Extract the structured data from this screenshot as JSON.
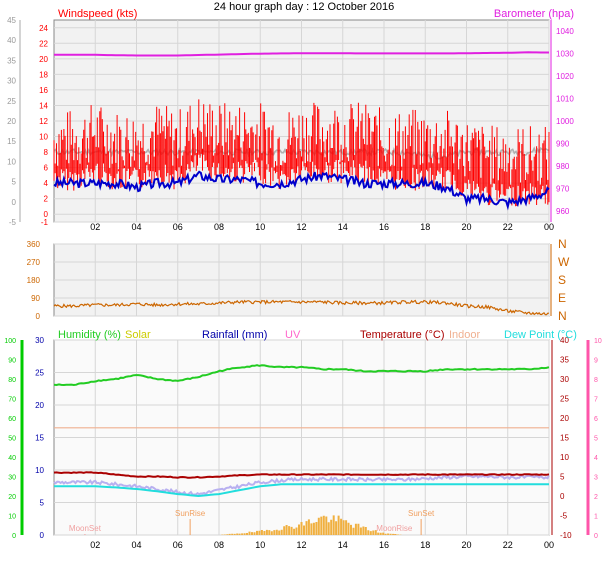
{
  "title": "24 hour graph day : 12 October 2016",
  "x_tick_labels": [
    "02",
    "04",
    "06",
    "08",
    "10",
    "12",
    "14",
    "16",
    "18",
    "20",
    "22",
    "00"
  ],
  "colors": {
    "panel_bg_top": "#f2f2f2",
    "grid": "#d6d6d6",
    "wind_avg": "#0000cc",
    "wind_gust": "#ff0000",
    "wind_gray": "#b0b0b0",
    "barometer": "#e020e0",
    "direction": "#cc6600",
    "humidity": "#22cc22",
    "solar": "#cccc00",
    "rainfall": "#0000aa",
    "uv": "#ff66cc",
    "temperature": "#aa0000",
    "indoor": "#f0b090",
    "dewpoint": "#22dddd",
    "feels": "#b8b0f0",
    "axis_green": "#00cc00",
    "axis_pink": "#ff55aa",
    "axis_orange": "#cc6600"
  },
  "chart_data": [
    {
      "type": "line",
      "panel": "wind",
      "title": "24 hour graph day : 12 October 2016",
      "left_axis_label": "Windspeed (kts)",
      "right_axis_label": "Barometer (hpa)",
      "outer_left_ticks": [
        "-5",
        "0",
        "5",
        "10",
        "15",
        "20",
        "25",
        "30",
        "35",
        "40",
        "45"
      ],
      "left_ticks": [
        "-1",
        "0",
        "2",
        "4",
        "6",
        "8",
        "10",
        "12",
        "14",
        "16",
        "18",
        "20",
        "22",
        "24"
      ],
      "right_ticks": [
        "960",
        "970",
        "980",
        "990",
        "1000",
        "1010",
        "1020",
        "1030",
        "1040"
      ],
      "ylim_left": [
        -1,
        25
      ],
      "ylim_right": [
        955,
        1045
      ],
      "x_hours": [
        1,
        2,
        3,
        4,
        5,
        6,
        7,
        8,
        9,
        10,
        11,
        12,
        13,
        14,
        15,
        16,
        17,
        18,
        19,
        20,
        21,
        22,
        23,
        24
      ],
      "series": [
        {
          "name": "Barometer",
          "axis": "right",
          "values": [
            1029.5,
            1029.5,
            1029.3,
            1029.2,
            1029.2,
            1029.2,
            1029.4,
            1029.6,
            1029.8,
            1030,
            1030.1,
            1030.2,
            1030.2,
            1030.2,
            1030.1,
            1030.1,
            1030.1,
            1030.1,
            1030.1,
            1030.2,
            1030.3,
            1030.4,
            1030.6,
            1030.5
          ]
        },
        {
          "name": "Wind Gust",
          "axis": "left",
          "values": [
            8,
            9,
            8,
            8,
            9,
            8,
            10,
            9,
            9,
            9,
            8,
            9,
            9,
            9,
            9,
            8,
            8,
            8,
            8,
            7,
            6,
            6,
            6,
            6
          ]
        },
        {
          "name": "Wind Average",
          "axis": "left",
          "values": [
            4,
            4,
            4,
            3.5,
            4,
            4,
            5,
            4.5,
            4.5,
            4,
            4,
            4.5,
            5,
            4.5,
            4,
            4,
            4,
            4,
            3.5,
            2,
            2,
            1.5,
            2,
            3
          ]
        },
        {
          "name": "Wind Trend",
          "axis": "left",
          "values": [
            8,
            8,
            8,
            8,
            8,
            8,
            8,
            8,
            8,
            8,
            8,
            8,
            8,
            8,
            8,
            8,
            8,
            7.5,
            7.5,
            8,
            8,
            8,
            8,
            8.5
          ]
        }
      ]
    },
    {
      "type": "line",
      "panel": "direction",
      "right_axis_labels": [
        "N",
        "W",
        "S",
        "E",
        "N"
      ],
      "left_ticks": [
        "0",
        "90",
        "180",
        "270",
        "360"
      ],
      "ylim": [
        0,
        360
      ],
      "x_hours": [
        1,
        2,
        3,
        4,
        5,
        6,
        7,
        8,
        9,
        10,
        11,
        12,
        13,
        14,
        15,
        16,
        17,
        18,
        19,
        20,
        21,
        22,
        23,
        24
      ],
      "series": [
        {
          "name": "Wind Direction",
          "values": [
            50,
            55,
            55,
            60,
            55,
            60,
            60,
            65,
            70,
            70,
            70,
            70,
            70,
            65,
            65,
            65,
            70,
            70,
            65,
            50,
            45,
            25,
            15,
            10
          ]
        }
      ]
    },
    {
      "type": "line",
      "panel": "climate",
      "legend": [
        "Humidity (%)",
        "Solar",
        "Rainfall (mm)",
        "UV",
        "Temperature (°C)",
        "Indoor",
        "Dew Point (°C)"
      ],
      "outer_left_ticks": [
        "0",
        "10",
        "20",
        "30",
        "40",
        "50",
        "60",
        "70",
        "80",
        "90",
        "100"
      ],
      "left_ticks": [
        "0",
        "5",
        "10",
        "15",
        "20",
        "25",
        "30"
      ],
      "right_ticks": [
        "-10",
        "-5",
        "0",
        "5",
        "10",
        "15",
        "20",
        "25",
        "30",
        "35",
        "40"
      ],
      "far_right_ticks": [
        "0",
        "1",
        "2",
        "3",
        "4",
        "5",
        "6",
        "7",
        "8",
        "9",
        "10"
      ],
      "ylim_humidity": [
        0,
        100
      ],
      "ylim_temperature": [
        -10,
        40
      ],
      "annotations": [
        "MoonSet",
        "SunRise",
        "SunSet",
        "MoonRise"
      ],
      "x_hours": [
        1,
        2,
        3,
        4,
        5,
        6,
        7,
        8,
        9,
        10,
        11,
        12,
        13,
        14,
        15,
        16,
        17,
        18,
        19,
        20,
        21,
        22,
        23,
        24
      ],
      "series": [
        {
          "name": "Humidity",
          "axis": "humidity",
          "values": [
            77,
            79,
            80,
            82,
            80,
            79,
            81,
            84,
            86,
            87,
            86,
            86,
            85,
            85,
            84,
            84,
            84,
            84,
            85,
            85,
            85,
            85,
            85,
            86
          ]
        },
        {
          "name": "Indoor",
          "axis": "temperature",
          "values": [
            17.5,
            17.5,
            17.5,
            17.5,
            17.5,
            17.5,
            17.5,
            17.5,
            17.5,
            17.5,
            17.5,
            17.5,
            17.5,
            17.5,
            17.5,
            17.5,
            17.5,
            17.5,
            17.5,
            17.5,
            17.5,
            17.5,
            17.5,
            17.5
          ]
        },
        {
          "name": "Temperature",
          "axis": "temperature",
          "values": [
            6,
            6,
            5.5,
            5,
            5,
            4.8,
            4.8,
            5,
            5.3,
            5.5,
            5.5,
            5.5,
            5.5,
            5.5,
            5.5,
            5.5,
            5.5,
            5.5,
            5.5,
            5.5,
            5.5,
            5.5,
            5.5,
            5.5
          ]
        },
        {
          "name": "Feels Like",
          "axis": "temperature",
          "values": [
            3.5,
            3.5,
            3,
            2.5,
            1.8,
            1,
            0.5,
            1.5,
            2.5,
            3.5,
            4,
            4.3,
            4.3,
            4.3,
            4.2,
            4.2,
            4.2,
            4.5,
            4.8,
            5,
            5,
            4.8,
            4.8,
            4.8
          ]
        },
        {
          "name": "Dew Point",
          "axis": "temperature",
          "values": [
            2.5,
            2.5,
            2.2,
            1.8,
            1.2,
            0.5,
            0,
            0.5,
            1.5,
            2.5,
            3,
            3,
            3,
            3,
            3,
            3,
            3,
            3,
            3,
            3,
            3,
            3,
            3,
            3
          ]
        },
        {
          "name": "Solar",
          "axis": "temperature",
          "values": [
            0,
            0,
            0,
            0,
            0,
            0,
            0,
            0,
            0.5,
            1,
            2,
            3,
            5,
            4,
            2,
            0.5,
            0,
            0,
            0,
            0,
            0,
            0,
            0,
            0
          ]
        }
      ]
    }
  ]
}
